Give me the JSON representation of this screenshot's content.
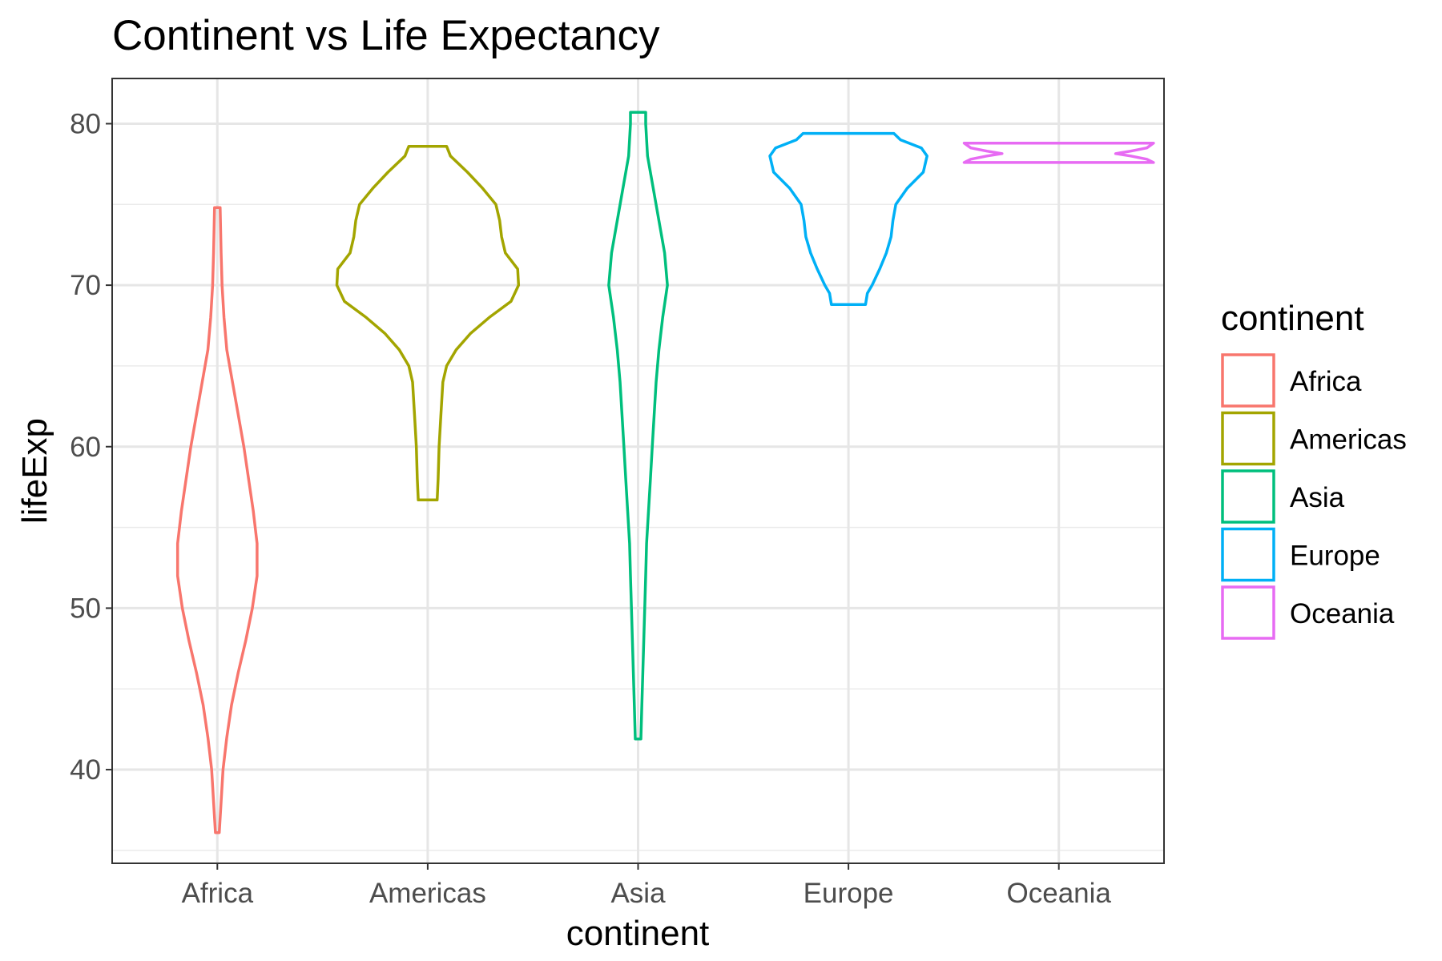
{
  "chart_data": {
    "type": "violin",
    "title": "Continent vs Life Expectancy",
    "xlabel": "continent",
    "ylabel": "lifeExp",
    "categories": [
      "Africa",
      "Americas",
      "Asia",
      "Europe",
      "Oceania"
    ],
    "ylim": [
      34.2,
      82.8
    ],
    "yticks": [
      40,
      50,
      60,
      70,
      80
    ],
    "grid": true,
    "legend": {
      "title": "continent",
      "position": "right",
      "entries": [
        "Africa",
        "Americas",
        "Asia",
        "Europe",
        "Oceania"
      ]
    },
    "colors": [
      "#F8766D",
      "#A3A500",
      "#00BF7D",
      "#00B0F6",
      "#E76BF3"
    ],
    "series": [
      {
        "name": "Africa",
        "min": 36.1,
        "max": 74.8,
        "profile": [
          [
            36.1,
            0.02
          ],
          [
            38,
            0.04
          ],
          [
            40,
            0.06
          ],
          [
            42,
            0.1
          ],
          [
            44,
            0.15
          ],
          [
            46,
            0.22
          ],
          [
            48,
            0.3
          ],
          [
            50,
            0.37
          ],
          [
            52,
            0.42
          ],
          [
            54,
            0.42
          ],
          [
            56,
            0.38
          ],
          [
            58,
            0.33
          ],
          [
            60,
            0.28
          ],
          [
            62,
            0.22
          ],
          [
            64,
            0.16
          ],
          [
            66,
            0.1
          ],
          [
            68,
            0.07
          ],
          [
            70,
            0.05
          ],
          [
            72,
            0.04
          ],
          [
            74.8,
            0.03
          ]
        ]
      },
      {
        "name": "Americas",
        "min": 56.7,
        "max": 78.6,
        "profile": [
          [
            56.7,
            0.1
          ],
          [
            58,
            0.11
          ],
          [
            60,
            0.12
          ],
          [
            62,
            0.14
          ],
          [
            64,
            0.16
          ],
          [
            65,
            0.2
          ],
          [
            66,
            0.3
          ],
          [
            67,
            0.45
          ],
          [
            68,
            0.65
          ],
          [
            69,
            0.88
          ],
          [
            70,
            0.96
          ],
          [
            71,
            0.95
          ],
          [
            72,
            0.82
          ],
          [
            73,
            0.78
          ],
          [
            74,
            0.76
          ],
          [
            75,
            0.72
          ],
          [
            76,
            0.58
          ],
          [
            77,
            0.42
          ],
          [
            78,
            0.24
          ],
          [
            78.6,
            0.2
          ]
        ]
      },
      {
        "name": "Asia",
        "min": 41.9,
        "max": 80.7,
        "profile": [
          [
            41.9,
            0.03
          ],
          [
            44,
            0.04
          ],
          [
            46,
            0.05
          ],
          [
            48,
            0.06
          ],
          [
            50,
            0.07
          ],
          [
            52,
            0.08
          ],
          [
            54,
            0.09
          ],
          [
            56,
            0.11
          ],
          [
            58,
            0.13
          ],
          [
            60,
            0.15
          ],
          [
            62,
            0.17
          ],
          [
            64,
            0.19
          ],
          [
            66,
            0.22
          ],
          [
            68,
            0.26
          ],
          [
            70,
            0.31
          ],
          [
            72,
            0.28
          ],
          [
            74,
            0.22
          ],
          [
            76,
            0.16
          ],
          [
            78,
            0.1
          ],
          [
            80,
            0.08
          ],
          [
            80.7,
            0.08
          ]
        ]
      },
      {
        "name": "Europe",
        "min": 68.8,
        "max": 79.4,
        "profile": [
          [
            68.8,
            0.18
          ],
          [
            69.5,
            0.2
          ],
          [
            70,
            0.25
          ],
          [
            71,
            0.33
          ],
          [
            72,
            0.4
          ],
          [
            73,
            0.45
          ],
          [
            74,
            0.47
          ],
          [
            75,
            0.5
          ],
          [
            76,
            0.62
          ],
          [
            77,
            0.79
          ],
          [
            78,
            0.83
          ],
          [
            78.5,
            0.77
          ],
          [
            79,
            0.55
          ],
          [
            79.4,
            0.48
          ]
        ]
      },
      {
        "name": "Oceania",
        "min": 77.6,
        "max": 78.8,
        "profile": [
          [
            77.6,
            1.0
          ],
          [
            77.8,
            0.93
          ],
          [
            78.0,
            0.76
          ],
          [
            78.15,
            0.6
          ],
          [
            78.3,
            0.76
          ],
          [
            78.5,
            0.93
          ],
          [
            78.8,
            1.0
          ]
        ]
      }
    ]
  }
}
